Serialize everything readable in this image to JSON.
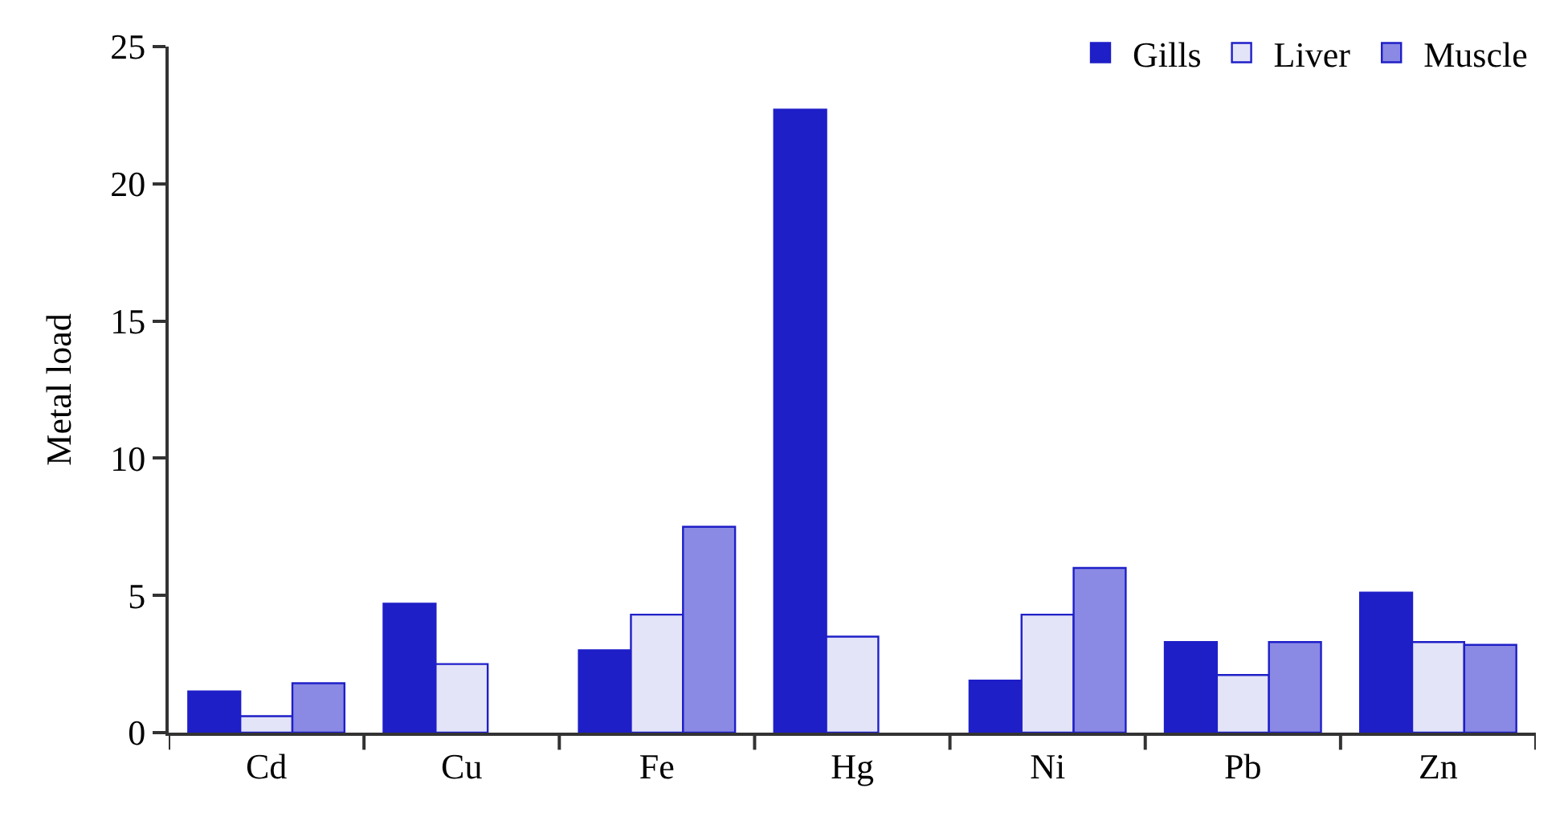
{
  "chart_data": {
    "type": "bar",
    "ylabel": "Metal load",
    "categories": [
      "Cd",
      "Cu",
      "Fe",
      "Hg",
      "Ni",
      "Pb",
      "Zn"
    ],
    "series": [
      {
        "name": "Gills",
        "color": "#1f1fc8",
        "values": [
          1.5,
          4.7,
          3.0,
          22.7,
          1.9,
          3.3,
          5.1
        ]
      },
      {
        "name": "Liver",
        "color": "#e4e4f8",
        "values": [
          0.6,
          2.5,
          4.3,
          3.5,
          4.3,
          2.1,
          3.3
        ]
      },
      {
        "name": "Muscle",
        "color": "#8a8ae4",
        "values": [
          1.8,
          null,
          7.5,
          null,
          6.0,
          3.3,
          3.2
        ]
      }
    ],
    "ylim": [
      0,
      25
    ],
    "yticks": [
      0,
      5,
      10,
      15,
      20,
      25
    ],
    "grid": false,
    "legend": "top right"
  }
}
